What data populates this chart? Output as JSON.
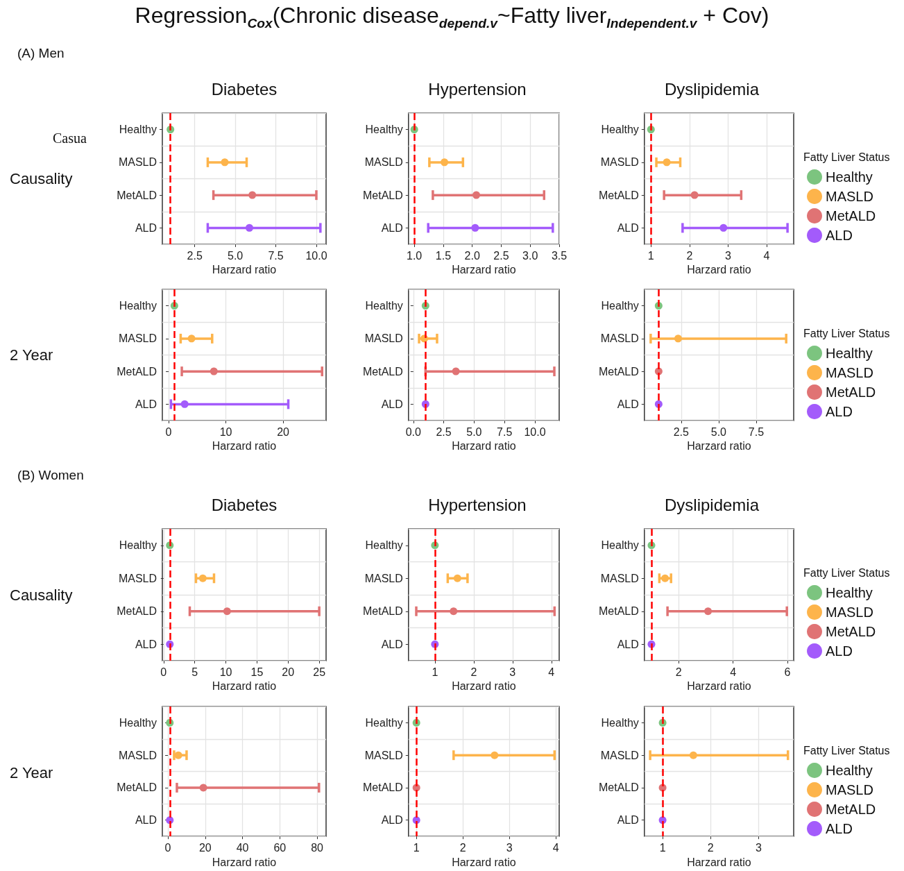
{
  "chart_data": [
    {
      "type": "scatter",
      "orientation": "horizontal",
      "title": "Diabetes",
      "ylabel": "Causality",
      "xlabel": "Harzard ratio",
      "annotations": [
        "Regression$_{Cox}$(Chronic disease$_{depend.v}$~Fatty liver$_{Independent.v}$ + Cov)",
        "(A) Men",
        "Casua"
      ],
      "categories": [
        "Healthy",
        "MASLD",
        "MetALD",
        "ALD"
      ],
      "xlim": [
        0.5,
        10.6
      ],
      "xticks": [
        2.5,
        {
          "value": 5,
          "label": "5.0"
        },
        7.5,
        {
          "value": 10,
          "label": "10.0"
        }
      ],
      "grid": true,
      "marker": "circle",
      "ref_lines": [
        {
          "axis": "x",
          "value": 1,
          "color": "#ff0000",
          "line_style": "dashed"
        }
      ],
      "series": [
        {
          "color": "#7cc47f",
          "values": [
            1,
            null,
            null,
            null
          ]
        },
        {
          "color": "#fdb44b",
          "values": [
            null,
            4.35,
            null,
            null
          ],
          "errors": [
            null,
            [
              3.3,
              5.7
            ],
            null,
            null
          ]
        },
        {
          "color": "#e07374",
          "values": [
            null,
            null,
            6.05,
            null
          ],
          "errors": [
            null,
            null,
            [
              3.65,
              10.0
            ],
            null
          ]
        },
        {
          "color": "#a35bfb",
          "values": [
            null,
            null,
            null,
            5.87
          ],
          "errors": [
            null,
            null,
            null,
            [
              3.3,
              10.25
            ]
          ]
        }
      ]
    },
    {
      "type": "scatter",
      "orientation": "horizontal",
      "title": "Hypertension",
      "xlabel": "Harzard ratio",
      "categories": [
        "Healthy",
        "MASLD",
        "MetALD",
        "ALD"
      ],
      "xlim": [
        0.9,
        3.5
      ],
      "xticks": [
        {
          "value": 1,
          "label": "1.0"
        },
        1.5,
        {
          "value": 2,
          "label": "2.0"
        },
        2.5,
        {
          "value": 3,
          "label": "3.0"
        },
        3.5
      ],
      "grid": true,
      "marker": "circle",
      "ref_lines": [
        {
          "axis": "x",
          "value": 1,
          "color": "#ff0000",
          "line_style": "dashed"
        }
      ],
      "series": [
        {
          "color": "#7cc47f",
          "values": [
            1,
            null,
            null,
            null
          ]
        },
        {
          "color": "#fdb44b",
          "values": [
            null,
            1.52,
            null,
            null
          ],
          "errors": [
            null,
            [
              1.26,
              1.84
            ],
            null,
            null
          ]
        },
        {
          "color": "#e07374",
          "values": [
            null,
            null,
            2.07,
            null
          ],
          "errors": [
            null,
            null,
            [
              1.32,
              3.24
            ],
            null
          ]
        },
        {
          "color": "#a35bfb",
          "values": [
            null,
            null,
            null,
            2.05
          ],
          "errors": [
            null,
            null,
            null,
            [
              1.24,
              3.39
            ]
          ]
        }
      ]
    },
    {
      "type": "scatter",
      "orientation": "horizontal",
      "title": "Dyslipidemia",
      "xlabel": "Harzard ratio",
      "legend": "right",
      "legend_title": "Fatty Liver Status",
      "categories": [
        "Healthy",
        "MASLD",
        "MetALD",
        "ALD"
      ],
      "xlim": [
        0.83,
        4.7
      ],
      "xticks": [
        1,
        2,
        3,
        4
      ],
      "grid": true,
      "marker": "circle",
      "ref_lines": [
        {
          "axis": "x",
          "value": 1,
          "color": "#ff0000",
          "line_style": "dashed"
        }
      ],
      "series": [
        {
          "name": "Healthy",
          "color": "#7cc47f",
          "values": [
            1,
            null,
            null,
            null
          ]
        },
        {
          "name": "MASLD",
          "color": "#fdb44b",
          "values": [
            null,
            1.41,
            null,
            null
          ],
          "errors": [
            null,
            [
              1.14,
              1.76
            ],
            null,
            null
          ]
        },
        {
          "name": "MetALD",
          "color": "#e07374",
          "values": [
            null,
            null,
            2.13,
            null
          ],
          "errors": [
            null,
            null,
            [
              1.34,
              3.34
            ],
            null
          ]
        },
        {
          "name": "ALD",
          "color": "#a35bfb",
          "values": [
            null,
            null,
            null,
            2.88
          ],
          "errors": [
            null,
            null,
            null,
            [
              1.82,
              4.54
            ]
          ]
        }
      ]
    },
    {
      "type": "scatter",
      "orientation": "horizontal",
      "ylabel": "2 Year",
      "xlabel": "Harzard ratio",
      "categories": [
        "Healthy",
        "MASLD",
        "MetALD",
        "ALD"
      ],
      "xlim": [
        -1.1,
        27.5
      ],
      "xticks": [
        0,
        10,
        20
      ],
      "grid": true,
      "marker": "circle",
      "ref_lines": [
        {
          "axis": "x",
          "value": 1,
          "color": "#ff0000",
          "line_style": "dashed"
        }
      ],
      "series": [
        {
          "color": "#7cc47f",
          "values": [
            1,
            null,
            null,
            null
          ]
        },
        {
          "color": "#fdb44b",
          "values": [
            null,
            4.0,
            null,
            null
          ],
          "errors": [
            null,
            [
              2.1,
              7.6
            ],
            null,
            null
          ]
        },
        {
          "color": "#e07374",
          "values": [
            null,
            null,
            7.9,
            null
          ],
          "errors": [
            null,
            null,
            [
              2.3,
              26.8
            ],
            null
          ]
        },
        {
          "color": "#a35bfb",
          "values": [
            null,
            null,
            null,
            2.8
          ],
          "errors": [
            null,
            null,
            null,
            [
              0.4,
              20.9
            ]
          ]
        }
      ]
    },
    {
      "type": "scatter",
      "orientation": "horizontal",
      "xlabel": "Harzard ratio",
      "categories": [
        "Healthy",
        "MASLD",
        "MetALD",
        "ALD"
      ],
      "xlim": [
        -0.4,
        12
      ],
      "xticks": [
        {
          "value": 0,
          "label": "0.0"
        },
        2.5,
        {
          "value": 5,
          "label": "5.0"
        },
        7.5,
        {
          "value": 10,
          "label": "10.0"
        }
      ],
      "grid": true,
      "marker": "circle",
      "ref_lines": [
        {
          "axis": "x",
          "value": 1,
          "color": "#ff0000",
          "line_style": "dashed"
        }
      ],
      "series": [
        {
          "color": "#7cc47f",
          "values": [
            1,
            null,
            null,
            null
          ]
        },
        {
          "color": "#fdb44b",
          "values": [
            null,
            0.9,
            null,
            null
          ],
          "errors": [
            null,
            [
              0.47,
              1.95
            ],
            null,
            null
          ]
        },
        {
          "color": "#e07374",
          "values": [
            null,
            null,
            3.5,
            null
          ],
          "errors": [
            null,
            null,
            [
              1.0,
              11.6
            ],
            null
          ]
        },
        {
          "color": "#a35bfb",
          "values": [
            null,
            null,
            null,
            1
          ]
        }
      ]
    },
    {
      "type": "scatter",
      "orientation": "horizontal",
      "xlabel": "Harzard ratio",
      "legend": "right",
      "legend_title": "Fatty Liver Status",
      "categories": [
        "Healthy",
        "MASLD",
        "MetALD",
        "ALD"
      ],
      "xlim": [
        0.05,
        10
      ],
      "xticks": [
        2.5,
        {
          "value": 5,
          "label": "5.0"
        },
        7.5
      ],
      "grid": true,
      "marker": "circle",
      "ref_lines": [
        {
          "axis": "x",
          "value": 1,
          "color": "#ff0000",
          "line_style": "dashed"
        }
      ],
      "series": [
        {
          "name": "Healthy",
          "color": "#7cc47f",
          "values": [
            1,
            null,
            null,
            null
          ]
        },
        {
          "name": "MASLD",
          "color": "#fdb44b",
          "values": [
            null,
            2.3,
            null,
            null
          ],
          "errors": [
            null,
            [
              0.47,
              9.5
            ],
            null,
            null
          ]
        },
        {
          "name": "MetALD",
          "color": "#e07374",
          "values": [
            null,
            null,
            1,
            null
          ]
        },
        {
          "name": "ALD",
          "color": "#a35bfb",
          "values": [
            null,
            null,
            null,
            1
          ]
        }
      ]
    },
    {
      "type": "scatter",
      "orientation": "horizontal",
      "title": "Diabetes",
      "ylabel": "Causality",
      "xlabel": "Harzard ratio",
      "annotations": [
        "(B) Women"
      ],
      "categories": [
        "Healthy",
        "MASLD",
        "MetALD",
        "ALD"
      ],
      "xlim": [
        -0.2,
        26.1
      ],
      "xticks": [
        0,
        5,
        10,
        15,
        20,
        25
      ],
      "grid": true,
      "marker": "circle",
      "ref_lines": [
        {
          "axis": "x",
          "value": 1,
          "color": "#ff0000",
          "line_style": "dashed"
        }
      ],
      "series": [
        {
          "color": "#7cc47f",
          "values": [
            1,
            null,
            null,
            null
          ]
        },
        {
          "color": "#fdb44b",
          "values": [
            null,
            6.3,
            null,
            null
          ],
          "errors": [
            null,
            [
              5.2,
              8.1
            ],
            null,
            null
          ]
        },
        {
          "color": "#e07374",
          "values": [
            null,
            null,
            10.2,
            null
          ],
          "errors": [
            null,
            null,
            [
              4.2,
              25.0
            ],
            null
          ]
        },
        {
          "color": "#a35bfb",
          "values": [
            null,
            null,
            null,
            1
          ]
        }
      ]
    },
    {
      "type": "scatter",
      "orientation": "horizontal",
      "title": "Hypertension",
      "xlabel": "Harzard ratio",
      "categories": [
        "Healthy",
        "MASLD",
        "MetALD",
        "ALD"
      ],
      "xlim": [
        0.32,
        4.2
      ],
      "xticks": [
        1,
        2,
        3,
        4
      ],
      "grid": true,
      "marker": "circle",
      "ref_lines": [
        {
          "axis": "x",
          "value": 1,
          "color": "#ff0000",
          "line_style": "dashed"
        }
      ],
      "series": [
        {
          "color": "#7cc47f",
          "values": [
            1,
            null,
            null,
            null
          ]
        },
        {
          "color": "#fdb44b",
          "values": [
            null,
            1.58,
            null,
            null
          ],
          "errors": [
            null,
            [
              1.33,
              1.84
            ],
            null,
            null
          ]
        },
        {
          "color": "#e07374",
          "values": [
            null,
            null,
            1.48,
            null
          ],
          "errors": [
            null,
            null,
            [
              0.52,
              4.08
            ],
            null
          ]
        },
        {
          "color": "#a35bfb",
          "values": [
            null,
            null,
            null,
            1
          ]
        }
      ]
    },
    {
      "type": "scatter",
      "orientation": "horizontal",
      "title": "Dyslipidemia",
      "xlabel": "Harzard ratio",
      "legend": "right",
      "legend_title": "Fatty Liver Status",
      "categories": [
        "Healthy",
        "MASLD",
        "MetALD",
        "ALD"
      ],
      "xlim": [
        0.74,
        6.23
      ],
      "xticks": [
        2,
        4,
        6
      ],
      "grid": true,
      "marker": "circle",
      "ref_lines": [
        {
          "axis": "x",
          "value": 1,
          "color": "#ff0000",
          "line_style": "dashed"
        }
      ],
      "series": [
        {
          "name": "Healthy",
          "color": "#7cc47f",
          "values": [
            1,
            null,
            null,
            null
          ]
        },
        {
          "name": "MASLD",
          "color": "#fdb44b",
          "values": [
            null,
            1.5,
            null,
            null
          ],
          "errors": [
            null,
            [
              1.29,
              1.72
            ],
            null,
            null
          ]
        },
        {
          "name": "MetALD",
          "color": "#e07374",
          "values": [
            null,
            null,
            3.08,
            null
          ],
          "errors": [
            null,
            null,
            [
              1.59,
              5.98
            ],
            null
          ]
        },
        {
          "name": "ALD",
          "color": "#a35bfb",
          "values": [
            null,
            null,
            null,
            1
          ]
        }
      ]
    },
    {
      "type": "scatter",
      "orientation": "horizontal",
      "ylabel": "2 Year",
      "xlabel": "Harzard ratio",
      "categories": [
        "Healthy",
        "MASLD",
        "MetALD",
        "ALD"
      ],
      "xlim": [
        -3,
        84.8
      ],
      "xticks": [
        0,
        20,
        40,
        60,
        80
      ],
      "grid": true,
      "marker": "circle",
      "ref_lines": [
        {
          "axis": "x",
          "value": 1,
          "color": "#ff0000",
          "line_style": "dashed"
        }
      ],
      "series": [
        {
          "color": "#7cc47f",
          "values": [
            1,
            null,
            null,
            null
          ]
        },
        {
          "color": "#fdb44b",
          "values": [
            null,
            5.6,
            null,
            null
          ],
          "errors": [
            null,
            [
              3.3,
              10
            ],
            null,
            null
          ]
        },
        {
          "color": "#e07374",
          "values": [
            null,
            null,
            19,
            null
          ],
          "errors": [
            null,
            null,
            [
              4.8,
              81
            ],
            null
          ]
        },
        {
          "color": "#a35bfb",
          "values": [
            null,
            null,
            null,
            1
          ]
        }
      ]
    },
    {
      "type": "scatter",
      "orientation": "horizontal",
      "xlabel": "Harzard ratio",
      "categories": [
        "Healthy",
        "MASLD",
        "MetALD",
        "ALD"
      ],
      "xlim": [
        0.83,
        4.07
      ],
      "xticks": [
        1,
        2,
        3,
        4
      ],
      "grid": true,
      "marker": "circle",
      "ref_lines": [
        {
          "axis": "x",
          "value": 1,
          "color": "#ff0000",
          "line_style": "dashed"
        }
      ],
      "series": [
        {
          "color": "#7cc47f",
          "values": [
            1,
            null,
            null,
            null
          ]
        },
        {
          "color": "#fdb44b",
          "values": [
            null,
            2.68,
            null,
            null
          ],
          "errors": [
            null,
            [
              1.8,
              3.97
            ],
            null,
            null
          ]
        },
        {
          "color": "#e07374",
          "values": [
            null,
            null,
            1,
            null
          ]
        },
        {
          "color": "#a35bfb",
          "values": [
            null,
            null,
            null,
            1
          ]
        }
      ]
    },
    {
      "type": "scatter",
      "orientation": "horizontal",
      "xlabel": "Harzard ratio",
      "legend": "right",
      "legend_title": "Fatty Liver Status",
      "categories": [
        "Healthy",
        "MASLD",
        "MetALD",
        "ALD"
      ],
      "xlim": [
        0.62,
        3.73
      ],
      "xticks": [
        1,
        2,
        3
      ],
      "grid": true,
      "marker": "circle",
      "ref_lines": [
        {
          "axis": "x",
          "value": 1,
          "color": "#ff0000",
          "line_style": "dashed"
        }
      ],
      "series": [
        {
          "name": "Healthy",
          "color": "#7cc47f",
          "values": [
            1,
            null,
            null,
            null
          ]
        },
        {
          "name": "MASLD",
          "color": "#fdb44b",
          "values": [
            null,
            1.64,
            null,
            null
          ],
          "errors": [
            null,
            [
              0.74,
              3.61
            ],
            null,
            null
          ]
        },
        {
          "name": "MetALD",
          "color": "#e07374",
          "values": [
            null,
            null,
            1,
            null
          ]
        },
        {
          "name": "ALD",
          "color": "#a35bfb",
          "values": [
            null,
            null,
            null,
            1
          ]
        }
      ]
    }
  ]
}
